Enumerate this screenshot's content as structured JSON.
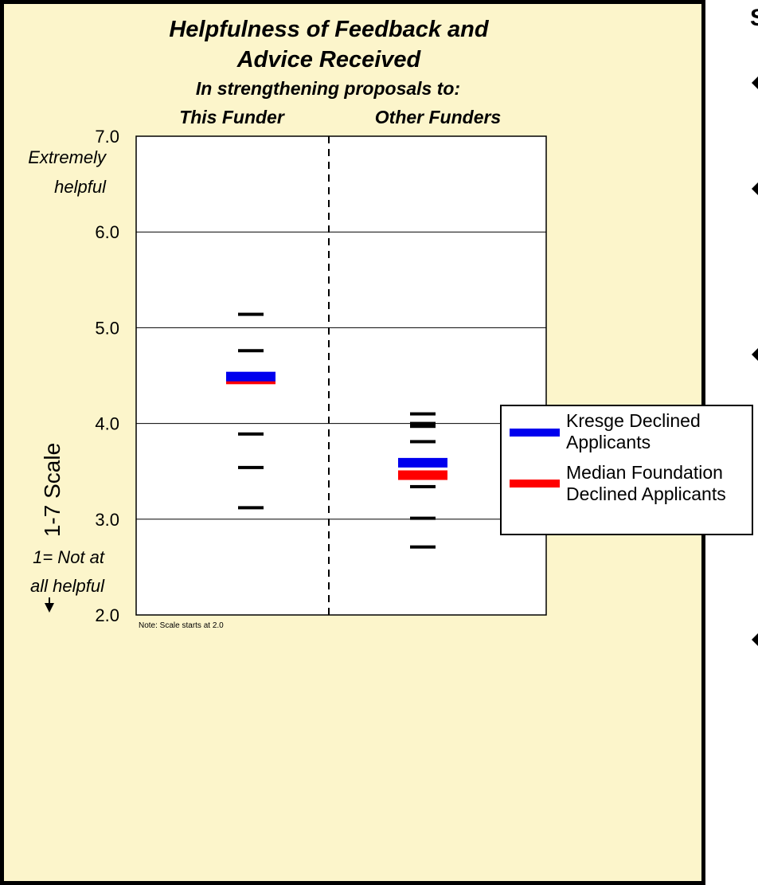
{
  "chart_data": {
    "type": "scatter",
    "title_lines": [
      "Helpfulness of Feedback and",
      "Advice Received"
    ],
    "subtitle": "In strengthening proposals to:",
    "categories": [
      "This Funder",
      "Other Funders"
    ],
    "ylabel": "1-7 Scale",
    "ylim": [
      2.0,
      7.0
    ],
    "yticks": [
      "2.0",
      "3.0",
      "4.0",
      "5.0",
      "6.0",
      "7.0"
    ],
    "grid": true,
    "top_annotation": [
      "Extremely",
      "helpful"
    ],
    "bottom_annotation": [
      "1= Not at",
      "all helpful"
    ],
    "note": "Note: Scale starts at 2.0",
    "funder_values": [
      {
        "category": "This Funder",
        "values": [
          5.14,
          4.76,
          3.89,
          3.54,
          3.12
        ]
      },
      {
        "category": "Other Funders",
        "values": [
          4.1,
          4.0,
          3.97,
          3.81,
          3.34,
          3.01,
          2.71
        ]
      }
    ],
    "series": [
      {
        "name": "Kresge Declined Applicants",
        "color": "#0000ee",
        "values": [
          4.49,
          3.59
        ]
      },
      {
        "name": "Median Foundation Declined Applicants",
        "color": "#ff0000",
        "values": [
          4.46,
          3.46
        ]
      }
    ],
    "legend": {
      "position": "right",
      "entries": [
        {
          "lines": [
            "Kresge Declined",
            "Applicants"
          ],
          "color": "#0000ee"
        },
        {
          "lines": [
            "Median Foundation",
            "Declined Applicants"
          ],
          "color": "#ff0000"
        }
      ]
    }
  },
  "side_text": "S",
  "colors": {
    "panel_bg": "#fcf5cb",
    "plot_bg": "#ffffff"
  }
}
